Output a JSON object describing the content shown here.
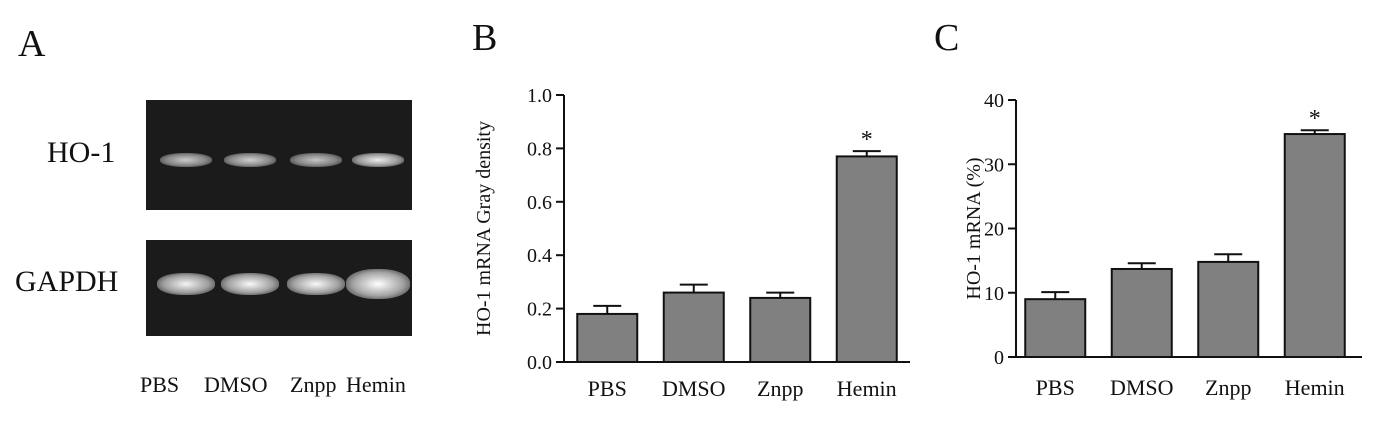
{
  "panels": {
    "a": {
      "letter": "A",
      "gel_labels": [
        "HO-1",
        "GAPDH"
      ],
      "lanes": [
        "PBS",
        "DMSO",
        "Znpp",
        "Hemin"
      ],
      "band_intensity": {
        "HO-1": [
          0.55,
          0.6,
          0.5,
          0.85
        ],
        "GAPDH": [
          0.9,
          0.95,
          0.95,
          1.0
        ]
      }
    },
    "b": {
      "letter": "B"
    },
    "c": {
      "letter": "C"
    }
  },
  "colors": {
    "bar": "#808080",
    "axis": "#111111",
    "gel_bg": "#1b1b1b"
  },
  "chart_data": [
    {
      "type": "bar",
      "panel": "B",
      "categories": [
        "PBS",
        "DMSO",
        "Znpp",
        "Hemin"
      ],
      "values": [
        0.18,
        0.26,
        0.24,
        0.77
      ],
      "errors": [
        0.03,
        0.03,
        0.02,
        0.02
      ],
      "significance": [
        "",
        "",
        "",
        "*"
      ],
      "ylabel": "HO-1 mRNA Gray density",
      "ylim": [
        0,
        1.0
      ],
      "yticks": [
        "0.0",
        "0.2",
        "0.4",
        "0.6",
        "0.8",
        "1.0"
      ],
      "grid": false
    },
    {
      "type": "bar",
      "panel": "C",
      "categories": [
        "PBS",
        "DMSO",
        "Znpp",
        "Hemin"
      ],
      "values": [
        9.0,
        13.7,
        14.8,
        34.7
      ],
      "errors": [
        1.1,
        0.9,
        1.2,
        0.6
      ],
      "significance": [
        "",
        "",
        "",
        "*"
      ],
      "ylabel": "HO-1 mRNA (%)",
      "ylim": [
        0,
        40
      ],
      "yticks": [
        "0",
        "10",
        "20",
        "30",
        "40"
      ],
      "grid": false
    }
  ]
}
